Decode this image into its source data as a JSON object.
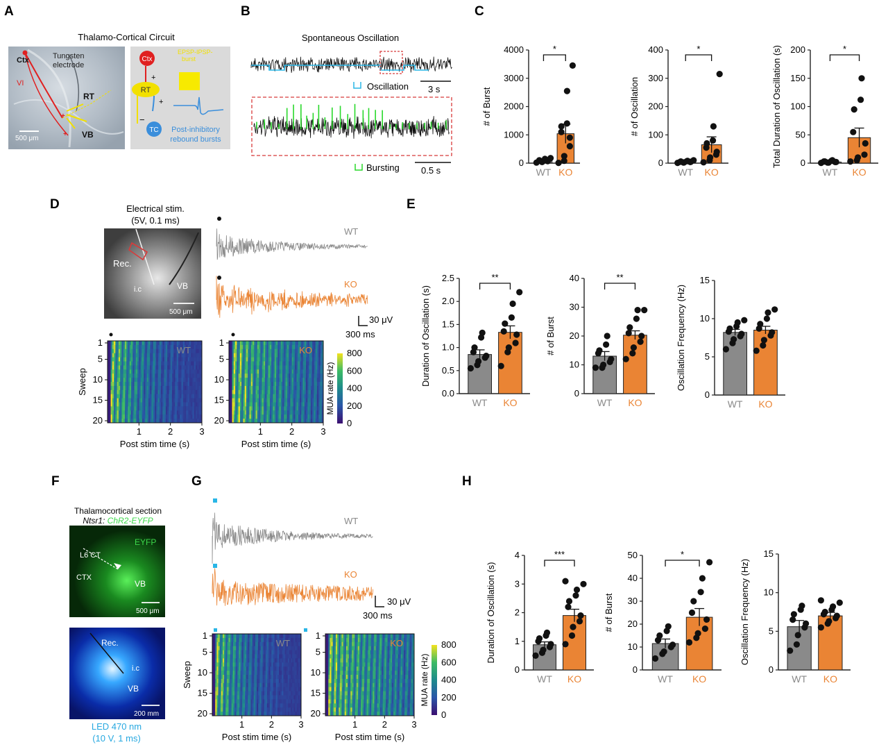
{
  "colors": {
    "wt": "#8a8a8a",
    "ko": "#ea8434",
    "ctx": "#e02020",
    "rt": "#f2e000",
    "tc": "#3a8edb",
    "osc": "#29b6e6",
    "burst": "#28d82a",
    "dash": "#d83a3a",
    "axis": "#222222",
    "led": "#27a8e0",
    "egreen": "#3cd84a"
  },
  "panel_letters": {
    "a": "A",
    "b": "B",
    "c": "C",
    "d": "D",
    "e": "E",
    "f": "F",
    "g": "G",
    "h": "H"
  },
  "groups": {
    "wt": "WT",
    "ko": "KO"
  },
  "A": {
    "title": "Thalamo-Cortical Circuit",
    "photo": {
      "ctx": "Ctx",
      "electrode": "Tungsten\nelectrode",
      "vi": "VI",
      "rt": "RT",
      "vb": "VB",
      "scale": "500 μm"
    },
    "schematic": {
      "ctx": "Ctx",
      "rt": "RT",
      "tc": "TC",
      "plus1": "+",
      "plus2": "+",
      "minus": "−",
      "epsp": "EPSP-IPSP-\nburst",
      "rebound": "Post-inhibitory\nrebound bursts"
    }
  },
  "B": {
    "title": "Spontaneous Oscillation",
    "osc_legend": "Oscillation",
    "scale_top": "3 s",
    "burst_legend": "Bursting",
    "scale_bottom": "0.5 s"
  },
  "D": {
    "stim_title": "Electrical stim.\n(5V, 0.1 ms)",
    "photo": {
      "rec": "Rec.",
      "ic": "i.c",
      "vb": "VB",
      "scale": "500 μm"
    },
    "scale_v": "30 μV",
    "scale_t": "300 ms"
  },
  "F": {
    "section_title": "Thalamocortical  section",
    "genotype": "Ntsr1: ",
    "construct": "ChR2-EYFP",
    "green": {
      "eyfp": "EYFP",
      "l6ct": "L6 CT",
      "ctx": "CTX",
      "vb": "VB",
      "scale": "500 μm"
    },
    "blue": {
      "rec": "Rec.",
      "ic": "i.c",
      "vb": "VB",
      "scale": "200 mm"
    },
    "led_line1": "LED 470 nm",
    "led_line2": "(10 V, 1 ms)"
  },
  "G": {
    "scale_v": "30 μV",
    "scale_t": "300 ms"
  },
  "heatmaps": {
    "ylabel": "Sweep",
    "xlabel": "Post stim time (s)",
    "yticks": [
      "1",
      "5",
      "10",
      "15",
      "20"
    ],
    "xticks": [
      "1",
      "2",
      "3"
    ],
    "colorbar_label": "MUA rate (Hz)",
    "colorbar_ticks": [
      "800",
      "600",
      "400",
      "200",
      "0"
    ]
  },
  "chart_data": [
    {
      "id": "C1",
      "type": "bar",
      "title": "",
      "ylabel": "# of Burst",
      "categories": [
        "WT",
        "KO"
      ],
      "values": [
        80,
        1040
      ],
      "sem": [
        30,
        340
      ],
      "ylim": [
        0,
        4000
      ],
      "yticks": [
        "0",
        "1000",
        "2000",
        "3000",
        "4000"
      ],
      "significance": "*",
      "points": {
        "WT": [
          20,
          40,
          60,
          70,
          80,
          90,
          100,
          120,
          150,
          180
        ],
        "KO": [
          10,
          80,
          250,
          600,
          900,
          1100,
          1300,
          1400,
          2550,
          3450
        ]
      }
    },
    {
      "id": "C2",
      "type": "bar",
      "title": "",
      "ylabel": "# of Oscillation",
      "categories": [
        "WT",
        "KO"
      ],
      "values": [
        5,
        65
      ],
      "sem": [
        2,
        28
      ],
      "ylim": [
        0,
        400
      ],
      "yticks": [
        "0",
        "100",
        "200",
        "300",
        "400"
      ],
      "significance": "*",
      "points": {
        "WT": [
          1,
          2,
          3,
          4,
          5,
          5,
          6,
          7,
          8,
          10
        ],
        "KO": [
          3,
          10,
          20,
          30,
          40,
          55,
          70,
          80,
          130,
          315
        ]
      }
    },
    {
      "id": "C3",
      "type": "bar",
      "title": "",
      "ylabel": "Total Duration of Oscillation (s)",
      "categories": [
        "WT",
        "KO"
      ],
      "values": [
        2,
        45
      ],
      "sem": [
        1,
        17
      ],
      "ylim": [
        0,
        200
      ],
      "yticks": [
        "0",
        "50",
        "100",
        "150",
        "200"
      ],
      "significance": "*",
      "points": {
        "WT": [
          0.5,
          1,
          1,
          2,
          2,
          3,
          3,
          4,
          5
        ],
        "KO": [
          3,
          5,
          10,
          15,
          35,
          55,
          95,
          112,
          150
        ]
      }
    },
    {
      "id": "E1",
      "type": "bar",
      "title": "",
      "ylabel": "Duration of Oscillation (s)",
      "categories": [
        "WT",
        "KO"
      ],
      "values": [
        0.85,
        1.33
      ],
      "sem": [
        0.1,
        0.14
      ],
      "ylim": [
        0,
        2.5
      ],
      "yticks": [
        "0.0",
        "0.5",
        "1.0",
        "1.5",
        "2.0",
        "2.5"
      ],
      "significance": "**",
      "points": {
        "WT": [
          0.55,
          0.62,
          0.7,
          0.78,
          0.82,
          0.9,
          1.0,
          1.22,
          1.32
        ],
        "KO": [
          0.6,
          0.9,
          1.0,
          1.1,
          1.28,
          1.35,
          1.52,
          1.65,
          1.95,
          2.2
        ]
      }
    },
    {
      "id": "E2",
      "type": "bar",
      "title": "",
      "ylabel": "# of Burst",
      "categories": [
        "WT",
        "KO"
      ],
      "values": [
        13,
        20.3
      ],
      "sem": [
        1.6,
        1.5
      ],
      "ylim": [
        0,
        40
      ],
      "yticks": [
        "0",
        "10",
        "20",
        "30",
        "40"
      ],
      "significance": "**",
      "points": {
        "WT": [
          9,
          9,
          10,
          11,
          12,
          14,
          15,
          17,
          20
        ],
        "KO": [
          12,
          14,
          16,
          18,
          20,
          21,
          23,
          26,
          29,
          29
        ]
      }
    },
    {
      "id": "E3",
      "type": "bar",
      "title": "",
      "ylabel": "Oscillation Frequency (Hz)",
      "categories": [
        "WT",
        "KO"
      ],
      "values": [
        8.2,
        8.5
      ],
      "sem": [
        0.4,
        0.5
      ],
      "ylim": [
        0,
        15
      ],
      "yticks": [
        "0",
        "5",
        "10",
        "15"
      ],
      "significance": "",
      "points": {
        "WT": [
          6.0,
          6.8,
          7.3,
          7.7,
          8.0,
          8.3,
          8.7,
          9.0,
          9.5,
          9.8
        ],
        "KO": [
          5.8,
          6.5,
          7.2,
          7.8,
          8.2,
          8.7,
          9.3,
          10.0,
          10.8,
          11.2
        ]
      }
    },
    {
      "id": "H1",
      "type": "bar",
      "title": "",
      "ylabel": "Duration of Oscillation (s)",
      "categories": [
        "WT",
        "KO"
      ],
      "values": [
        0.88,
        1.9
      ],
      "sem": [
        0.1,
        0.22
      ],
      "ylim": [
        0,
        4
      ],
      "yticks": [
        "0",
        "1",
        "2",
        "3",
        "4"
      ],
      "significance": "***",
      "points": {
        "WT": [
          0.5,
          0.6,
          0.7,
          0.8,
          0.9,
          1.0,
          1.1,
          1.2,
          1.3
        ],
        "KO": [
          0.9,
          1.2,
          1.5,
          1.7,
          1.9,
          2.2,
          2.4,
          2.6,
          2.8,
          3.0,
          3.1
        ]
      }
    },
    {
      "id": "H2",
      "type": "bar",
      "title": "",
      "ylabel": "# of Burst",
      "categories": [
        "WT",
        "KO"
      ],
      "values": [
        11.5,
        23
      ],
      "sem": [
        2,
        3.8
      ],
      "ylim": [
        0,
        50
      ],
      "yticks": [
        "0",
        "10",
        "20",
        "30",
        "40",
        "50"
      ],
      "significance": "*",
      "points": {
        "WT": [
          5,
          7,
          8,
          10,
          11,
          13,
          15,
          17,
          19
        ],
        "KO": [
          12,
          14,
          16,
          18,
          22,
          25,
          30,
          34,
          40,
          47
        ]
      }
    },
    {
      "id": "H3",
      "type": "bar",
      "title": "",
      "ylabel": "Oscillation Frequency (Hz)",
      "categories": [
        "WT",
        "KO"
      ],
      "values": [
        5.6,
        7
      ],
      "sem": [
        0.8,
        0.45
      ],
      "ylim": [
        0,
        15
      ],
      "yticks": [
        "0",
        "5",
        "10",
        "15"
      ],
      "significance": "",
      "points": {
        "WT": [
          2.5,
          3.3,
          4.5,
          5.5,
          6.0,
          6.5,
          7.2,
          7.8,
          8.3
        ],
        "KO": [
          5.5,
          6.0,
          6.3,
          6.7,
          7.0,
          7.2,
          7.5,
          7.8,
          8.2,
          8.7,
          9.0
        ]
      }
    }
  ]
}
